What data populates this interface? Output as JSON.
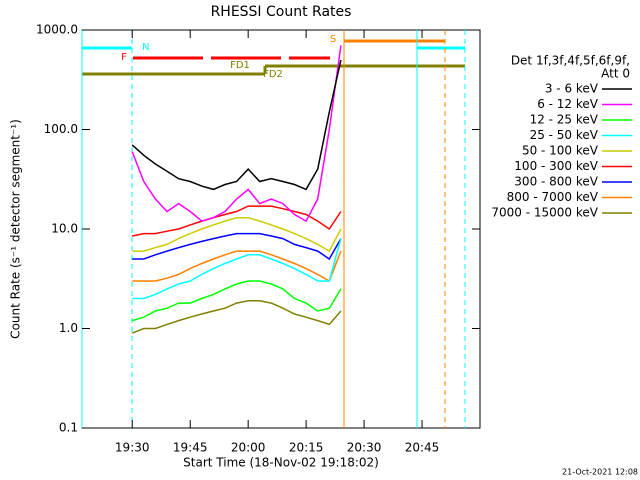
{
  "chart_data": {
    "type": "line",
    "title": "RHESSI Count Rates",
    "x_label": "Start Time (18-Nov-02 19:18:02)",
    "y_label": "Count Rate (s⁻¹ detector segment⁻¹)",
    "footer": "21-Oct-2021 12:08",
    "legend_title": [
      "Det 1f,3f,4f,5f,6f,9f,",
      "Att 0"
    ],
    "annotations": [
      "N",
      "F",
      "S",
      "FD1",
      "FD2"
    ],
    "y_log": true,
    "xlim": [
      "19:17",
      "21:00"
    ],
    "xticks": [
      "19:30",
      "19:45",
      "20:00",
      "20:15",
      "20:30",
      "20:45"
    ],
    "ylim": [
      0.1,
      1000
    ],
    "yticks": [
      {
        "value": 0.1,
        "label": "0.1"
      },
      {
        "value": 1,
        "label": "1.0"
      },
      {
        "value": 10,
        "label": "10.0"
      },
      {
        "value": 100,
        "label": "100.0"
      },
      {
        "value": 1000,
        "label": "1000.0"
      }
    ],
    "x": [
      "19:30",
      "19:33",
      "19:36",
      "19:39",
      "19:42",
      "19:45",
      "19:48",
      "19:51",
      "19:54",
      "19:57",
      "20:00",
      "20:03",
      "20:06",
      "20:09",
      "20:12",
      "20:15",
      "20:18",
      "20:21",
      "20:24"
    ],
    "series": [
      {
        "name": "3 - 6 keV",
        "color": "#000000",
        "values": [
          70,
          55,
          45,
          38,
          32,
          30,
          27,
          25,
          28,
          30,
          40,
          30,
          32,
          30,
          28,
          25,
          40,
          150,
          500
        ]
      },
      {
        "name": "6 - 12 keV",
        "color": "#ff00ff",
        "values": [
          60,
          30,
          20,
          15,
          18,
          15,
          12,
          13,
          15,
          20,
          25,
          18,
          20,
          18,
          14,
          12,
          20,
          100,
          700
        ]
      },
      {
        "name": "12 - 25 keV",
        "color": "#00ff00",
        "values": [
          1.2,
          1.3,
          1.5,
          1.6,
          1.8,
          1.8,
          2,
          2.2,
          2.5,
          2.8,
          3,
          3,
          2.8,
          2.5,
          2,
          1.8,
          1.5,
          1.6,
          2.5
        ]
      },
      {
        "name": "25 - 50 keV",
        "color": "#00ffff",
        "values": [
          2,
          2,
          2.2,
          2.5,
          2.8,
          3,
          3.5,
          4,
          4.5,
          5,
          5.5,
          5.5,
          5,
          4.5,
          4,
          3.5,
          3,
          3,
          8
        ]
      },
      {
        "name": "50 - 100 keV",
        "color": "#cccc00",
        "values": [
          6,
          6,
          6.5,
          7,
          8,
          9,
          10,
          11,
          12,
          13,
          13,
          12,
          11,
          10,
          9,
          8,
          7,
          6,
          10
        ]
      },
      {
        "name": "100 - 300 keV",
        "color": "#ff0000",
        "values": [
          8.5,
          9,
          9,
          9.5,
          10,
          11,
          12,
          13,
          14,
          15,
          17,
          17,
          17,
          16,
          15,
          14,
          12,
          10,
          15
        ]
      },
      {
        "name": "300 - 800 keV",
        "color": "#0000ff",
        "values": [
          5,
          5,
          5.5,
          6,
          6.5,
          7,
          7.5,
          8,
          8.5,
          9,
          9,
          9,
          8.5,
          8,
          7,
          6.5,
          6,
          5,
          8
        ]
      },
      {
        "name": "800 - 7000 keV",
        "color": "#ff8000",
        "values": [
          3,
          3,
          3,
          3.2,
          3.5,
          4,
          4.5,
          5,
          5.5,
          6,
          6,
          6,
          5.5,
          5,
          4.5,
          4,
          3.5,
          3,
          6
        ]
      },
      {
        "name": "7000 - 15000 keV",
        "color": "#808000",
        "values": [
          0.9,
          1,
          1,
          1.1,
          1.2,
          1.3,
          1.4,
          1.5,
          1.6,
          1.8,
          1.9,
          1.9,
          1.8,
          1.6,
          1.4,
          1.3,
          1.2,
          1.1,
          1.5
        ]
      }
    ]
  }
}
